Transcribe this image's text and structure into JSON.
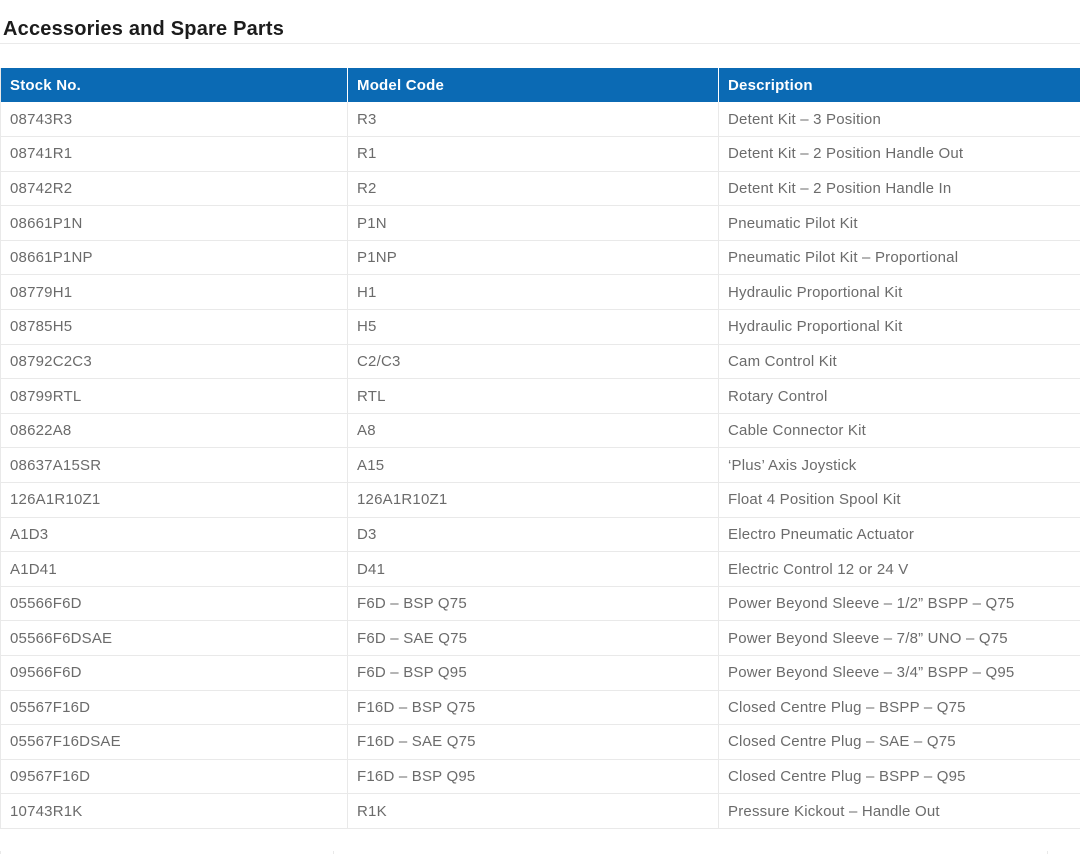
{
  "page": {
    "title": "Accessories and Spare Parts"
  },
  "colors": {
    "header_bg": "#0b6ab4",
    "header_text": "#ffffff",
    "title_text": "#1c1c1c",
    "body_text": "#6b6b6b",
    "row_border": "#e9e9e9"
  },
  "table": {
    "columns": [
      "Stock No.",
      "Model Code",
      "Description"
    ],
    "rows": [
      [
        "08743R3",
        "R3",
        "Detent Kit – 3 Position"
      ],
      [
        "08741R1",
        "R1",
        "Detent Kit – 2 Position Handle Out"
      ],
      [
        "08742R2",
        "R2",
        "Detent Kit – 2 Position Handle In"
      ],
      [
        "08661P1N",
        "P1N",
        "Pneumatic Pilot Kit"
      ],
      [
        "08661P1NP",
        "P1NP",
        "Pneumatic Pilot Kit – Proportional"
      ],
      [
        "08779H1",
        "H1",
        "Hydraulic Proportional Kit"
      ],
      [
        "08785H5",
        "H5",
        "Hydraulic Proportional Kit"
      ],
      [
        "08792C2C3",
        "C2/C3",
        "Cam Control Kit"
      ],
      [
        "08799RTL",
        "RTL",
        "Rotary Control"
      ],
      [
        "08622A8",
        "A8",
        "Cable Connector Kit"
      ],
      [
        "08637A15SR",
        "A15",
        "‘Plus’ Axis Joystick"
      ],
      [
        "126A1R10Z1",
        "126A1R10Z1",
        "Float 4 Position Spool Kit"
      ],
      [
        "A1D3",
        "D3",
        "Electro Pneumatic Actuator"
      ],
      [
        "A1D41",
        "D41",
        "Electric Control 12 or 24 V"
      ],
      [
        "05566F6D",
        "F6D – BSP Q75",
        "Power Beyond Sleeve – 1/2” BSPP – Q75"
      ],
      [
        "05566F6DSAE",
        "F6D – SAE Q75",
        "Power Beyond Sleeve – 7/8” UNO – Q75"
      ],
      [
        "09566F6D",
        "F6D – BSP Q95",
        "Power Beyond Sleeve – 3/4” BSPP – Q95"
      ],
      [
        "05567F16D",
        "F16D – BSP Q75",
        "Closed Centre Plug – BSPP – Q75"
      ],
      [
        "05567F16DSAE",
        "F16D – SAE Q75",
        "Closed Centre Plug – SAE – Q75"
      ],
      [
        "09567F16D",
        "F16D – BSP Q95",
        "Closed Centre Plug – BSPP – Q95"
      ],
      [
        "10743R1K",
        "R1K",
        "Pressure Kickout – Handle Out"
      ]
    ]
  }
}
